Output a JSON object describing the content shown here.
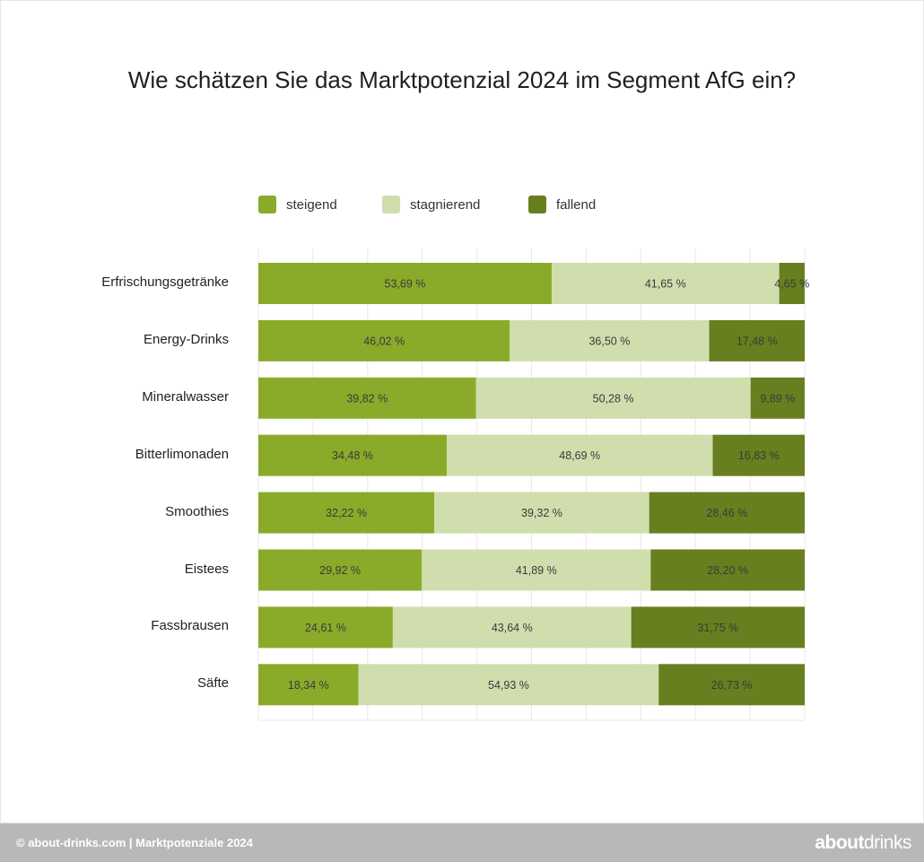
{
  "chart_data": {
    "type": "bar",
    "orientation": "horizontal",
    "stacked": true,
    "title": "Wie schätzen Sie das Marktpotenzial 2024 im Segment AfG ein?",
    "categories": [
      "Erfrischungsgetränke",
      "Energy-Drinks",
      "Mineralwasser",
      "Bitterlimonaden",
      "Smoothies",
      "Eistees",
      "Fassbrausen",
      "Säfte"
    ],
    "series": [
      {
        "name": "steigend",
        "color": "#8aab2a",
        "values": [
          53.69,
          46.02,
          39.82,
          34.48,
          32.22,
          29.92,
          24.61,
          18.34
        ],
        "labels": [
          "53,69 %",
          "46,02 %",
          "39,82 %",
          "34,48 %",
          "32,22 %",
          "29,92 %",
          "24,61 %",
          "18,34 %"
        ]
      },
      {
        "name": "stagnierend",
        "color": "#d0deae",
        "values": [
          41.65,
          36.5,
          50.28,
          48.69,
          39.32,
          41.89,
          43.64,
          54.93
        ],
        "labels": [
          "41,65 %",
          "36,50 %",
          "50,28 %",
          "48,69 %",
          "39,32 %",
          "41,89 %",
          "43,64 %",
          "54,93 %"
        ]
      },
      {
        "name": "fallend",
        "color": "#677f1f",
        "values": [
          4.65,
          17.48,
          9.89,
          16.83,
          28.46,
          28.2,
          31.75,
          26.73
        ],
        "labels": [
          "4,65 %",
          "17,48 %",
          "9,89 %",
          "16,83 %",
          "28,46 %",
          "28,20 %",
          "31,75 %",
          "26,73 %"
        ]
      }
    ],
    "xlim": [
      0,
      100
    ],
    "grid": true,
    "legend_position": "top"
  },
  "footer": {
    "source": "© about-drinks.com  |  Marktpotenziale 2024",
    "logo_bold": "about",
    "logo_light": "drinks"
  },
  "colors": {
    "footer_bg": "#b6b9b6",
    "gridline": "#e8e8e8"
  }
}
